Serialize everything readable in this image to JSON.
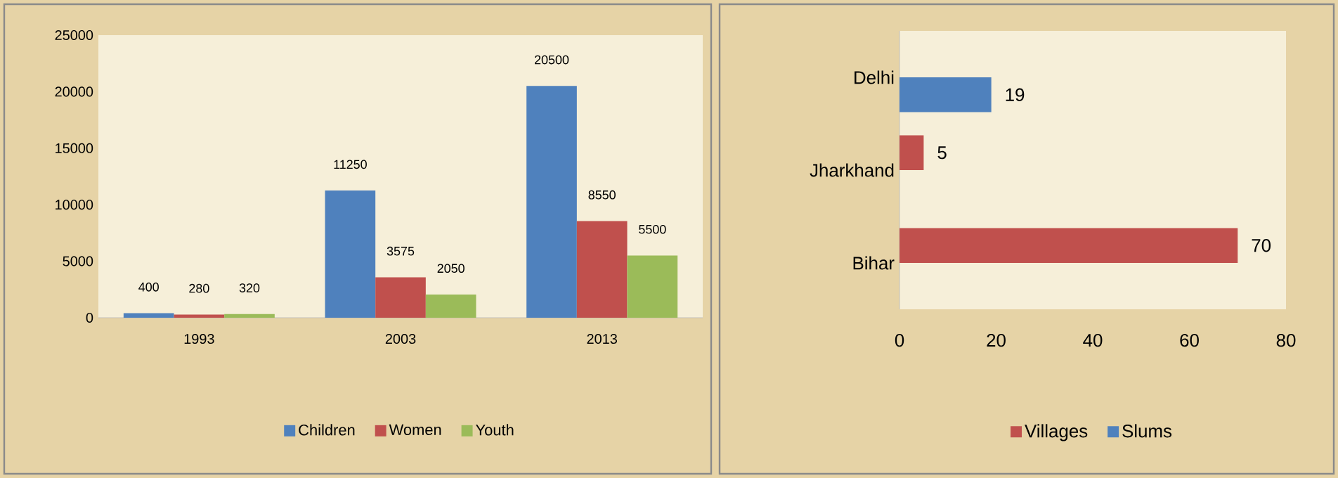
{
  "chart_data": [
    {
      "type": "bar",
      "categories": [
        "1993",
        "2003",
        "2013"
      ],
      "series": [
        {
          "name": "Children",
          "color": "#4f81bd",
          "values": [
            400,
            11250,
            20500
          ]
        },
        {
          "name": "Women",
          "color": "#c0504d",
          "values": [
            280,
            3575,
            8550
          ]
        },
        {
          "name": "Youth",
          "color": "#9bbb59",
          "values": [
            320,
            2050,
            5500
          ]
        }
      ],
      "ylim": [
        0,
        25000
      ],
      "yticks": [
        0,
        5000,
        10000,
        15000,
        20000,
        25000
      ],
      "data_labels": true,
      "legend": "bottom"
    },
    {
      "type": "bar",
      "orientation": "horizontal",
      "categories": [
        "Delhi",
        "Jharkhand",
        "Bihar"
      ],
      "series": [
        {
          "name": "Villages",
          "color": "#c0504d",
          "values": [
            null,
            5,
            70
          ]
        },
        {
          "name": "Slums",
          "color": "#4f81bd",
          "values": [
            19,
            null,
            null
          ]
        }
      ],
      "xlim": [
        0,
        80
      ],
      "xticks": [
        0,
        20,
        40,
        60,
        80
      ],
      "data_labels": true,
      "legend": "bottom"
    }
  ]
}
